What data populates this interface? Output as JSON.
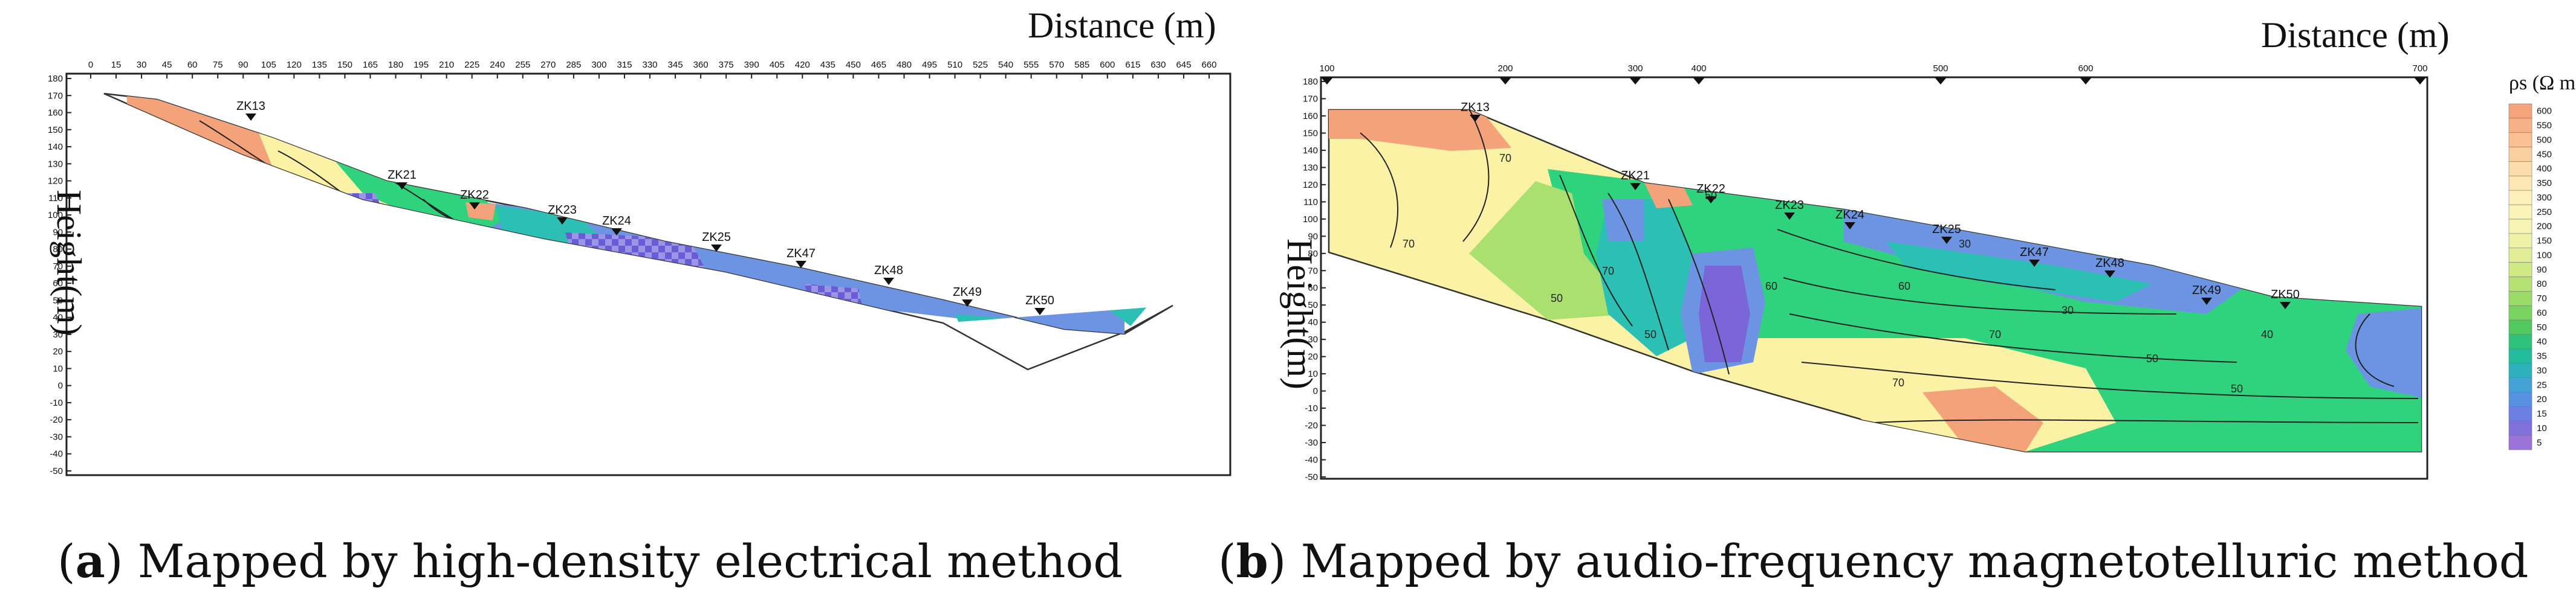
{
  "panel_a": {
    "distance_label": "Distance (m)",
    "height_label": "Height(m)",
    "x_ticks": [
      "0",
      "15",
      "30",
      "45",
      "60",
      "75",
      "90",
      "105",
      "120",
      "135",
      "150",
      "165",
      "180",
      "195",
      "210",
      "225",
      "240",
      "255",
      "270",
      "285",
      "300",
      "315",
      "330",
      "345",
      "360",
      "375",
      "390",
      "405",
      "420",
      "435",
      "450",
      "465",
      "480",
      "495",
      "510",
      "525",
      "540",
      "555",
      "570",
      "585",
      "600",
      "615",
      "630",
      "645",
      "660"
    ],
    "y_ticks": [
      "180",
      "170",
      "160",
      "150",
      "140",
      "130",
      "120",
      "110",
      "100",
      "90",
      "80",
      "70",
      "60",
      "50",
      "40",
      "30",
      "20",
      "10",
      "0",
      "-10",
      "-20",
      "-30",
      "-40",
      "-50"
    ],
    "boreholes": [
      "ZK13",
      "ZK21",
      "ZK22",
      "ZK23",
      "ZK24",
      "ZK25",
      "ZK47",
      "ZK48",
      "ZK49",
      "ZK50"
    ],
    "caption_letter": "a",
    "caption_text": ") Mapped by high-density electrical method"
  },
  "panel_b": {
    "distance_label": "Distance (m)",
    "height_label": "Height(m)",
    "x_ticks": [
      "100",
      "200",
      "300",
      "400",
      "500",
      "600",
      "700"
    ],
    "y_ticks": [
      "180",
      "170",
      "160",
      "150",
      "140",
      "130",
      "120",
      "110",
      "100",
      "90",
      "80",
      "70",
      "60",
      "50",
      "40",
      "30",
      "20",
      "10",
      "0",
      "-10",
      "-20",
      "-30",
      "-40",
      "-50"
    ],
    "boreholes": [
      "ZK13",
      "ZK21",
      "ZK22",
      "ZK23",
      "ZK24",
      "ZK25",
      "ZK47",
      "ZK48",
      "ZK49",
      "ZK50"
    ],
    "contour_labels": [
      "70",
      "70",
      "70",
      "50",
      "50",
      "50",
      "60",
      "60",
      "30",
      "70",
      "70",
      "30",
      "40",
      "50",
      "50"
    ],
    "legend_title": "ρs (Ω m)",
    "legend_values": [
      "600",
      "550",
      "500",
      "450",
      "400",
      "350",
      "300",
      "250",
      "200",
      "150",
      "100",
      "90",
      "80",
      "70",
      "60",
      "50",
      "40",
      "35",
      "30",
      "25",
      "20",
      "15",
      "10",
      "5"
    ],
    "legend_colors": [
      "#f4a37a",
      "#f6b186",
      "#f8c093",
      "#fad0a0",
      "#fbdcab",
      "#fde7b4",
      "#fdf0ba",
      "#fbf4b9",
      "#f5f4b2",
      "#eef2a6",
      "#e2ee96",
      "#cfe983",
      "#b6e273",
      "#99db66",
      "#78d35f",
      "#52c95f",
      "#2fc27a",
      "#22bb9b",
      "#2db2bb",
      "#44a2d4",
      "#5891e0",
      "#6b80e2",
      "#7f70dc",
      "#9a72d8"
    ],
    "caption_letter": "b",
    "caption_text": ") Mapped by audio-frequency magnetotelluric method"
  },
  "palette": {
    "orange": "#f4a27a",
    "yellow": "#fbf2a6",
    "green": "#2fd37e",
    "teal": "#2cc0b4",
    "blue": "#6d94e2",
    "purple": "#7a66d8"
  }
}
